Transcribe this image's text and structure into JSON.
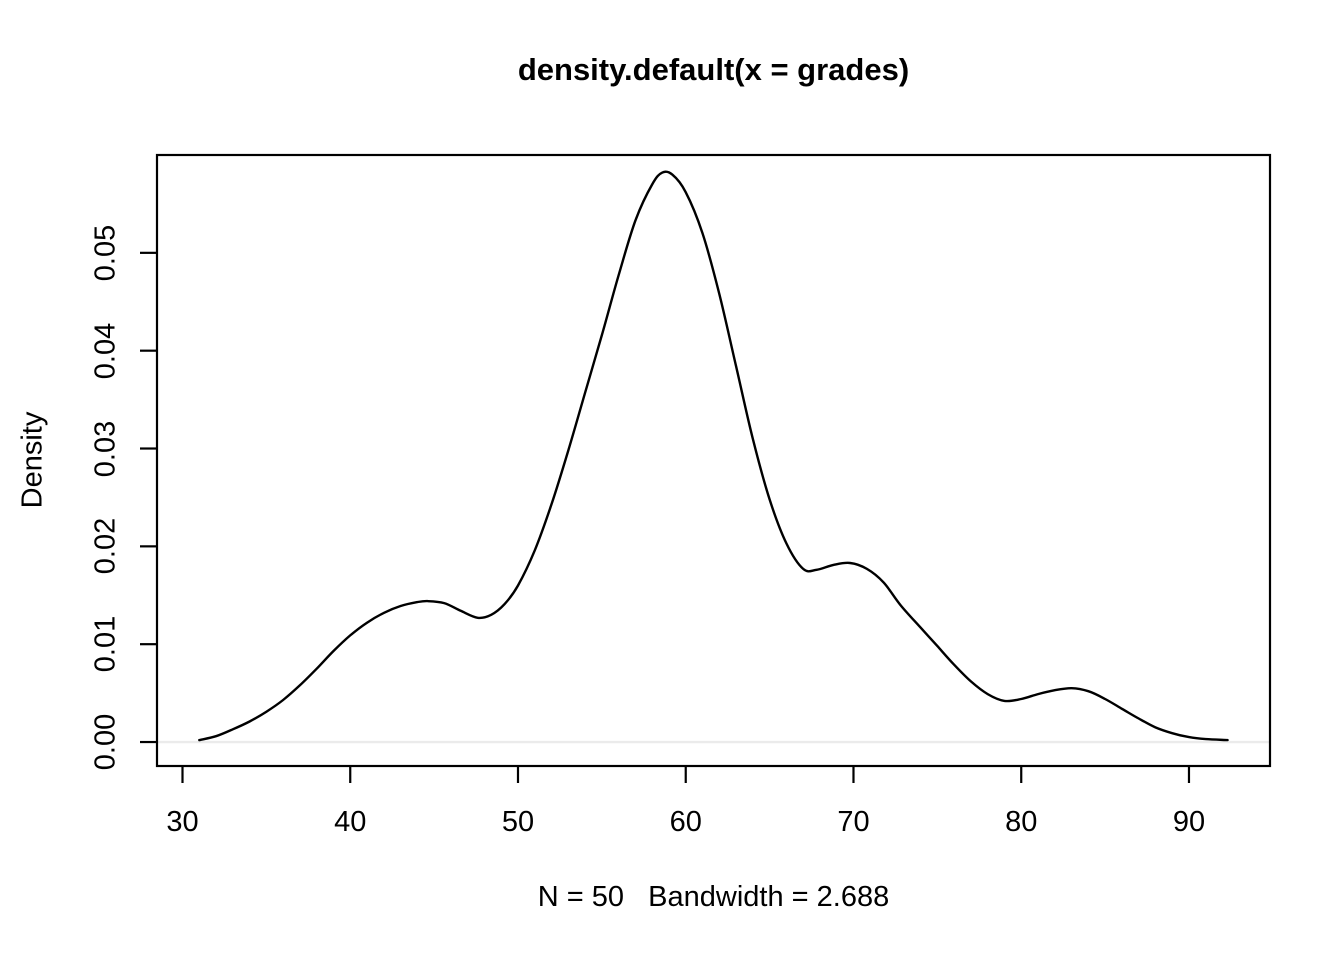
{
  "title": "density.default(x = grades)",
  "subtitle": "N = 50   Bandwidth = 2.688",
  "ylabel": "Density",
  "colors": {
    "background": "#ffffff",
    "text": "#000000",
    "curve": "#000000",
    "axis": "#000000",
    "zero_line": "#ebebeb"
  },
  "chart_data": {
    "type": "line",
    "title": "density.default(x = grades)",
    "subtitle": "N = 50   Bandwidth = 2.688",
    "xlabel": "N = 50   Bandwidth = 2.688",
    "ylabel": "Density",
    "n": 50,
    "bandwidth": 2.688,
    "grid": false,
    "legend": false,
    "xlim": [
      28.48,
      94.83
    ],
    "ylim": [
      -0.00245,
      0.06
    ],
    "x_ticks": [
      30,
      40,
      50,
      60,
      70,
      80,
      90
    ],
    "x_tick_labels": [
      "30",
      "40",
      "50",
      "60",
      "70",
      "80",
      "90"
    ],
    "y_ticks": [
      0.0,
      0.01,
      0.02,
      0.03,
      0.04,
      0.05
    ],
    "y_tick_labels": [
      "0.00",
      "0.01",
      "0.02",
      "0.03",
      "0.04",
      "0.05"
    ],
    "series": [
      {
        "name": "density",
        "x": [
          31.0,
          32,
          33,
          34,
          35,
          36,
          37,
          38,
          39,
          40,
          41,
          42,
          43,
          44,
          44.6,
          45.6,
          46.6,
          47.6,
          48.4,
          49.2,
          50,
          51,
          52,
          53,
          54,
          55,
          56,
          57,
          58,
          58.6,
          59.2,
          60,
          61,
          62,
          63,
          64,
          65,
          66,
          67,
          67.8,
          68.8,
          69.8,
          70.8,
          71.8,
          72.8,
          74,
          75,
          76,
          77,
          78,
          79,
          80,
          81,
          82,
          83,
          84,
          85,
          86,
          87,
          88,
          89,
          90,
          91,
          92.3
        ],
        "y": [
          0.0002,
          0.0006,
          0.0013,
          0.0021,
          0.0031,
          0.0043,
          0.0058,
          0.0075,
          0.0093,
          0.0109,
          0.0122,
          0.0132,
          0.0139,
          0.0143,
          0.0144,
          0.0142,
          0.0134,
          0.0127,
          0.013,
          0.0141,
          0.016,
          0.0196,
          0.0243,
          0.0298,
          0.0357,
          0.0416,
          0.0477,
          0.0533,
          0.057,
          0.0582,
          0.058,
          0.0562,
          0.052,
          0.0458,
          0.0384,
          0.031,
          0.0248,
          0.0203,
          0.0177,
          0.0176,
          0.0181,
          0.0183,
          0.0177,
          0.0163,
          0.014,
          0.0117,
          0.0098,
          0.0079,
          0.0062,
          0.0049,
          0.0042,
          0.0044,
          0.0049,
          0.0053,
          0.0055,
          0.0052,
          0.0044,
          0.0034,
          0.0024,
          0.0015,
          0.0009,
          0.0005,
          0.0003,
          0.0002
        ]
      }
    ]
  }
}
